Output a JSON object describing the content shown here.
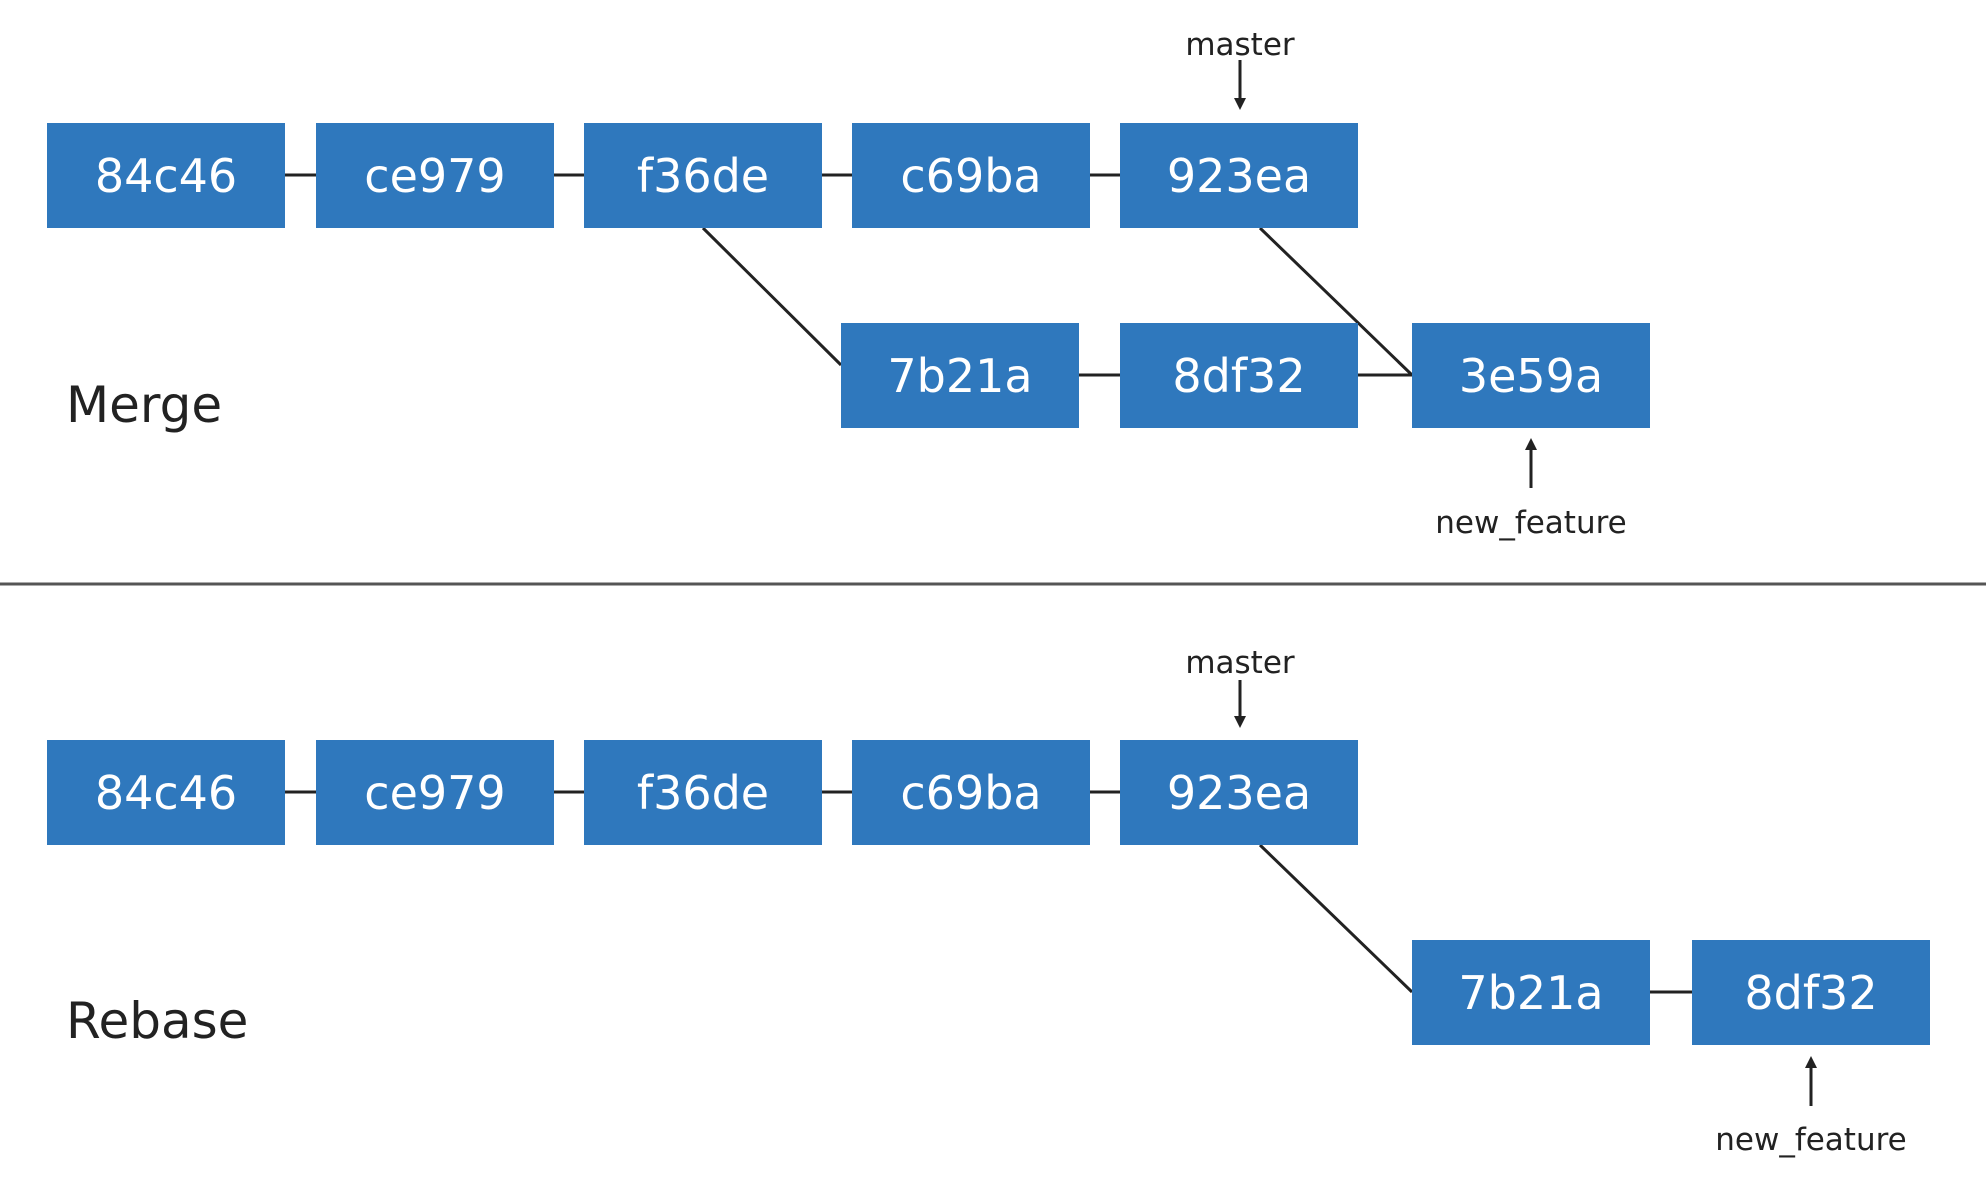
{
  "merge": {
    "title": "Merge",
    "commits": [
      "84c46",
      "ce979",
      "f36de",
      "c69ba",
      "923ea"
    ],
    "branch_commits": [
      "7b21a",
      "8df32"
    ],
    "merge_commit": "3e59a",
    "master_label": "master",
    "feature_label": "new_feature"
  },
  "rebase": {
    "title": "Rebase",
    "commits": [
      "84c46",
      "ce979",
      "f36de",
      "c69ba",
      "923ea"
    ],
    "branch_commits": [
      "7b21a",
      "8df32"
    ],
    "master_label": "master",
    "feature_label": "new_feature"
  },
  "colors": {
    "commit_fill": "#2f78bd",
    "commit_text": "#ffffff",
    "line": "#222222",
    "divider": "#555555"
  }
}
